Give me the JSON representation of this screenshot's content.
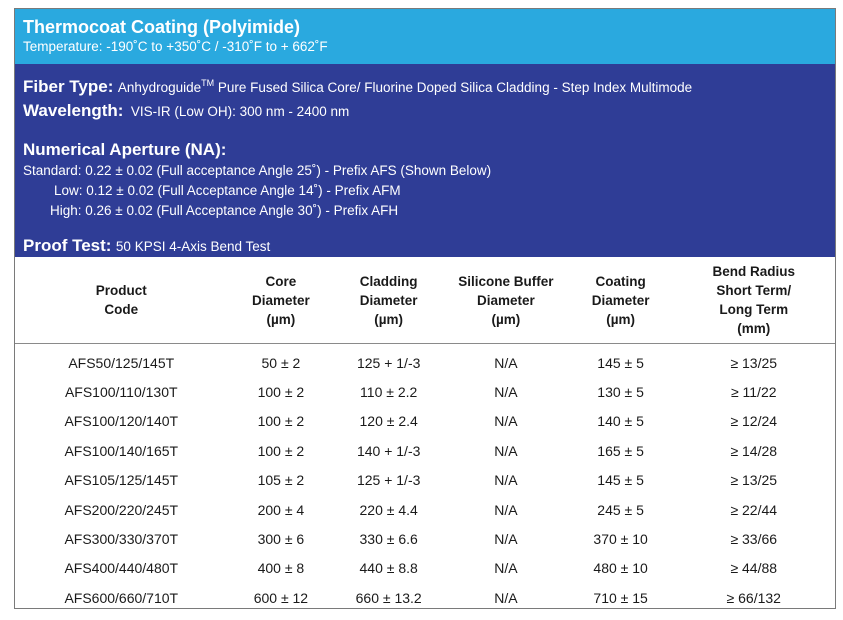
{
  "header": {
    "title": "Thermocoat Coating (Polyimide)",
    "temperature": "Temperature:  -190˚C to +350˚C / -310˚F to + 662˚F"
  },
  "fiber_type": {
    "label": "Fiber Type:",
    "brand": "Anhydroguide",
    "trademark": "TM",
    "text": " Pure Fused Silica Core/ Fluorine Doped Silica Cladding - Step Index Multimode"
  },
  "wavelength": {
    "label": "Wavelength:",
    "text": "VIS-IR (Low OH): 300 nm - 2400 nm"
  },
  "na": {
    "label": "Numerical Aperture (NA):",
    "standard": "Standard: 0.22 ± 0.02 (Full acceptance Angle 25˚) - Prefix AFS (Shown Below)",
    "low": "Low:  0.12 ± 0.02 (Full Acceptance Angle 14˚) - Prefix AFM",
    "high": "High:  0.26 ± 0.02 (Full Acceptance Angle 30˚) - Prefix AFH"
  },
  "proof_test": {
    "label": "Proof Test:",
    "text": "50 KPSI 4-Axis Bend Test"
  },
  "table": {
    "headers": [
      [
        "Product",
        "Code"
      ],
      [
        "Core",
        "Diameter",
        "(µm)"
      ],
      [
        "Cladding",
        "Diameter",
        "(µm)"
      ],
      [
        "Silicone Buffer",
        "Diameter",
        "(µm)"
      ],
      [
        "Coating",
        "Diameter",
        "(µm)"
      ],
      [
        "Bend Radius",
        "Short Term/",
        "Long Term",
        "(mm)"
      ]
    ],
    "rows": [
      [
        "AFS50/125/145T",
        "50 ± 2",
        "125 + 1/-3",
        "N/A",
        "145 ± 5",
        "≥ 13/25"
      ],
      [
        "AFS100/110/130T",
        "100 ± 2",
        "110 ± 2.2",
        "N/A",
        "130 ± 5",
        "≥ 11/22"
      ],
      [
        "AFS100/120/140T",
        "100 ± 2",
        "120 ± 2.4",
        "N/A",
        "140 ± 5",
        "≥ 12/24"
      ],
      [
        "AFS100/140/165T",
        "100 ± 2",
        "140 + 1/-3",
        "N/A",
        "165 ± 5",
        "≥ 14/28"
      ],
      [
        "AFS105/125/145T",
        "105 ± 2",
        "125 + 1/-3",
        "N/A",
        "145 ± 5",
        "≥ 13/25"
      ],
      [
        "AFS200/220/245T",
        "200 ± 4",
        "220 ± 4.4",
        "N/A",
        "245 ± 5",
        "≥ 22/44"
      ],
      [
        "AFS300/330/370T",
        "300 ± 6",
        "330 ± 6.6",
        "N/A",
        "370 ± 10",
        "≥ 33/66"
      ],
      [
        "AFS400/440/480T",
        "400 ± 8",
        "440 ± 8.8",
        "N/A",
        "480 ± 10",
        "≥ 44/88"
      ],
      [
        "AFS600/660/710T",
        "600 ± 12",
        "660 ± 13.2",
        "N/A",
        "710 ± 15",
        "≥ 66/132"
      ]
    ]
  },
  "colors": {
    "title_band": "#2aa9df",
    "info_band": "#2f3d96"
  }
}
